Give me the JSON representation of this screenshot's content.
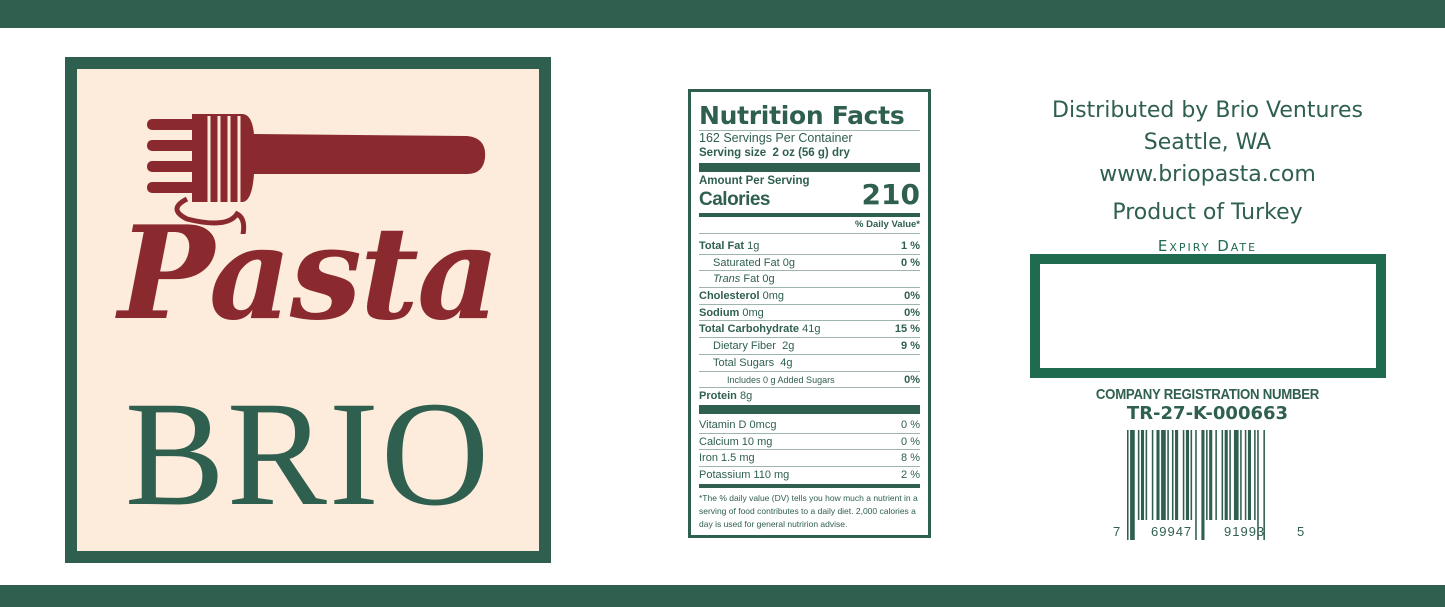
{
  "brand": {
    "script": "Pasta",
    "name": "BRIO",
    "colors": {
      "green": "#2f5f4f",
      "maroon": "#8b2a2e",
      "cream": "#fdebdc"
    }
  },
  "nutrition": {
    "title": "Nutrition Facts",
    "servings": "162 Servings Per Container",
    "serving_size_label": "Serving size",
    "serving_size_value": "2 oz (56 g) dry",
    "amount_per_serving": "Amount Per Serving",
    "calories_label": "Calories",
    "calories": "210",
    "dv_header": "% Daily Value*",
    "rows": [
      {
        "name": "Total Fat",
        "amount": "1g",
        "dv": "1 %"
      },
      {
        "name": "Saturated  Fat",
        "amount": "0g",
        "dv": "0 %"
      },
      {
        "name": "Trans",
        "amount": "Fat 0g",
        "dv": ""
      },
      {
        "name": "Cholesterol",
        "amount": "0mg",
        "dv": "0%"
      },
      {
        "name": "Sodium",
        "amount": "0mg",
        "dv": "0%"
      },
      {
        "name": "Total Carbohydrate",
        "amount": "41g",
        "dv": "15 %"
      },
      {
        "name": "Dietary Fiber",
        "amount": "2g",
        "dv": "9 %"
      },
      {
        "name": "Total Sugars",
        "amount": "4g",
        "dv": ""
      },
      {
        "name": "Includes 0 g Added Sugars",
        "amount": "",
        "dv": "0%"
      },
      {
        "name": "Protein",
        "amount": "8g",
        "dv": ""
      }
    ],
    "vitamins": [
      {
        "name": "Vitamin D 0mcg",
        "dv": "0 %"
      },
      {
        "name": "Calcium 10 mg",
        "dv": "0 %"
      },
      {
        "name": "Iron 1.5 mg",
        "dv": "8 %"
      },
      {
        "name": "Potassium 110 mg",
        "dv": "2 %"
      }
    ],
    "footnote": "*The % daily value (DV) tells you how much a nutrient in a serving of food contributes to a daily diet. 2,000 calories a day is used for general nutririon advise."
  },
  "distributor": {
    "line1": "Distributed by Brio Ventures",
    "line2": "Seattle, WA",
    "line3": "www.briopasta.com",
    "origin": "Product of Turkey"
  },
  "expiry_label": "Expiry Date",
  "registration": {
    "label": "COMPANY REGISTRATION NUMBER",
    "number": "TR-27-K-000663"
  },
  "barcode": {
    "first": "7",
    "left": "69947",
    "right": "91993",
    "last": "5"
  }
}
